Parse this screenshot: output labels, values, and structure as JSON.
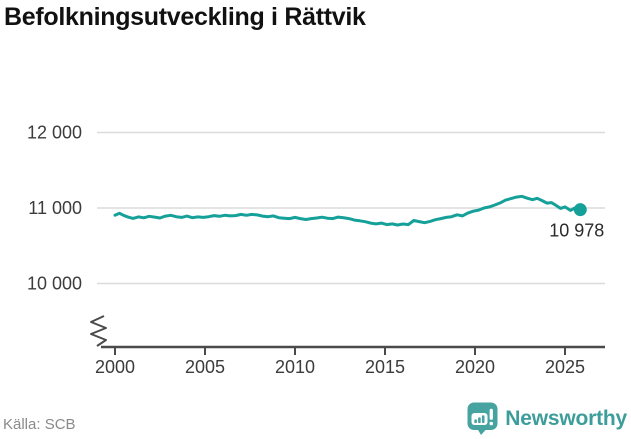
{
  "title": "Befolkningsutveckling i Rättvik",
  "source": "Källa: SCB",
  "logo": {
    "text": "Newsworthy"
  },
  "colors": {
    "line": "#15A099",
    "grid": "#DBDBDB",
    "axis": "#4A4A4A",
    "tick_label": "#3C3C3C",
    "end_label": "#2B2B2B",
    "title": "#111111",
    "source": "#8A8A8A",
    "logo_badge": "#47A3A0",
    "logo_text": "#3D9D9A"
  },
  "chart_data": {
    "type": "line",
    "title": "Befolkningsutveckling i Rättvik",
    "xlabel": "",
    "ylabel": "",
    "xlim": [
      1999.2,
      2027.2
    ],
    "ylim": [
      10000,
      12000
    ],
    "axis_break": true,
    "grid": "horizontal",
    "legend": "none",
    "x_ticks": [
      "2000",
      "2005",
      "2010",
      "2015",
      "2020",
      "2025"
    ],
    "y_ticks": [
      {
        "value": 12000,
        "label": "12 000"
      },
      {
        "value": 11000,
        "label": "11 000"
      },
      {
        "value": 10000,
        "label": "10 000"
      }
    ],
    "series_name": "Befolkning",
    "end_label": "10 978",
    "last_value": 10978,
    "points": [
      [
        2000.0,
        10905
      ],
      [
        2000.25,
        10930
      ],
      [
        2000.5,
        10900
      ],
      [
        2000.75,
        10878
      ],
      [
        2001.0,
        10862
      ],
      [
        2001.3,
        10882
      ],
      [
        2001.6,
        10870
      ],
      [
        2001.9,
        10890
      ],
      [
        2002.2,
        10880
      ],
      [
        2002.5,
        10868
      ],
      [
        2002.8,
        10893
      ],
      [
        2003.1,
        10903
      ],
      [
        2003.4,
        10885
      ],
      [
        2003.7,
        10875
      ],
      [
        2004.0,
        10893
      ],
      [
        2004.3,
        10872
      ],
      [
        2004.6,
        10882
      ],
      [
        2004.9,
        10875
      ],
      [
        2005.2,
        10885
      ],
      [
        2005.5,
        10900
      ],
      [
        2005.8,
        10890
      ],
      [
        2006.1,
        10903
      ],
      [
        2006.4,
        10895
      ],
      [
        2006.7,
        10900
      ],
      [
        2007.0,
        10915
      ],
      [
        2007.3,
        10903
      ],
      [
        2007.6,
        10915
      ],
      [
        2007.9,
        10908
      ],
      [
        2008.2,
        10893
      ],
      [
        2008.5,
        10885
      ],
      [
        2008.8,
        10895
      ],
      [
        2009.1,
        10872
      ],
      [
        2009.4,
        10865
      ],
      [
        2009.7,
        10860
      ],
      [
        2010.0,
        10875
      ],
      [
        2010.3,
        10860
      ],
      [
        2010.6,
        10848
      ],
      [
        2010.9,
        10860
      ],
      [
        2011.2,
        10868
      ],
      [
        2011.5,
        10878
      ],
      [
        2011.8,
        10865
      ],
      [
        2012.1,
        10860
      ],
      [
        2012.4,
        10880
      ],
      [
        2012.7,
        10870
      ],
      [
        2013.0,
        10860
      ],
      [
        2013.3,
        10840
      ],
      [
        2013.6,
        10830
      ],
      [
        2013.9,
        10818
      ],
      [
        2014.2,
        10800
      ],
      [
        2014.5,
        10790
      ],
      [
        2014.8,
        10800
      ],
      [
        2015.1,
        10780
      ],
      [
        2015.4,
        10790
      ],
      [
        2015.7,
        10775
      ],
      [
        2016.0,
        10788
      ],
      [
        2016.3,
        10780
      ],
      [
        2016.6,
        10835
      ],
      [
        2016.9,
        10820
      ],
      [
        2017.2,
        10805
      ],
      [
        2017.5,
        10822
      ],
      [
        2017.8,
        10845
      ],
      [
        2018.1,
        10860
      ],
      [
        2018.4,
        10875
      ],
      [
        2018.7,
        10885
      ],
      [
        2019.0,
        10910
      ],
      [
        2019.3,
        10895
      ],
      [
        2019.6,
        10932
      ],
      [
        2019.9,
        10958
      ],
      [
        2020.2,
        10972
      ],
      [
        2020.5,
        11000
      ],
      [
        2020.8,
        11015
      ],
      [
        2021.1,
        11040
      ],
      [
        2021.4,
        11068
      ],
      [
        2021.7,
        11105
      ],
      [
        2022.0,
        11125
      ],
      [
        2022.3,
        11145
      ],
      [
        2022.6,
        11155
      ],
      [
        2022.9,
        11130
      ],
      [
        2023.2,
        11110
      ],
      [
        2023.45,
        11128
      ],
      [
        2023.7,
        11100
      ],
      [
        2024.0,
        11065
      ],
      [
        2024.25,
        11072
      ],
      [
        2024.5,
        11035
      ],
      [
        2024.75,
        10995
      ],
      [
        2025.0,
        11015
      ],
      [
        2025.3,
        10968
      ],
      [
        2025.55,
        11000
      ],
      [
        2025.85,
        10978
      ]
    ]
  }
}
